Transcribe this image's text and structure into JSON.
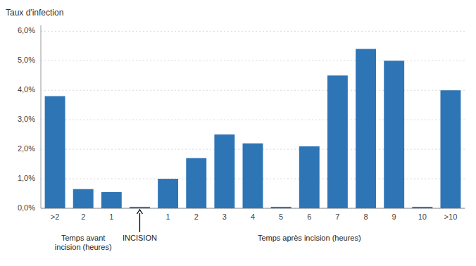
{
  "chart_data": {
    "type": "bar",
    "ylabel": "Taux d'infection",
    "categories": [
      ">2",
      "2",
      "1",
      null,
      "1",
      "2",
      "3",
      "4",
      "5",
      "6",
      "7",
      "8",
      "9",
      "10",
      ">10"
    ],
    "values": [
      0.038,
      0.0065,
      0.0055,
      0.0005,
      0.01,
      0.017,
      0.025,
      0.022,
      0.0005,
      0.021,
      0.045,
      0.054,
      0.05,
      0.0005,
      0.04
    ],
    "color": "#2E75B6",
    "ylim": [
      0,
      0.062
    ],
    "yticks": [
      {
        "value": 0.0,
        "label": "0,0%"
      },
      {
        "value": 0.01,
        "label": "1,0%"
      },
      {
        "value": 0.02,
        "label": "2,0%"
      },
      {
        "value": 0.03,
        "label": "3,0%"
      },
      {
        "value": 0.04,
        "label": "4,0%"
      },
      {
        "value": 0.05,
        "label": "5,0%"
      },
      {
        "value": 0.06,
        "label": "6,0%"
      }
    ],
    "grid": true,
    "annotations": [
      {
        "text": "Temps avant\nincision (heures)",
        "x": 1
      },
      {
        "text": "INCISION",
        "x": 3,
        "arrow": true
      },
      {
        "text": "Temps après incision (heures)",
        "x": 9
      }
    ]
  }
}
